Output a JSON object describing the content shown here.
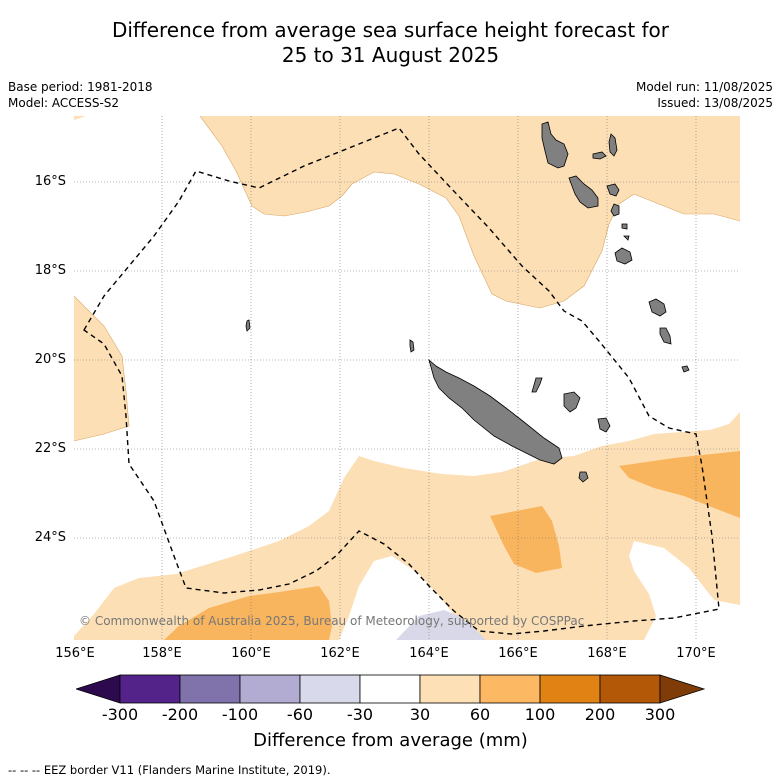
{
  "header": {
    "title_line1": "Difference from average sea surface height forecast for",
    "title_line2": "25 to 31 August 2025",
    "base_period": "Base period: 1981-2018",
    "model": "Model: ACCESS-S2",
    "model_run": "Model run: 11/08/2025",
    "issued": "Issued: 13/08/2025"
  },
  "map": {
    "lat_labels": [
      "16°S",
      "18°S",
      "20°S",
      "22°S",
      "24°S"
    ],
    "lon_labels": [
      "156°E",
      "158°E",
      "160°E",
      "162°E",
      "164°E",
      "166°E",
      "168°E",
      "170°E"
    ],
    "copyright": "© Commonwealth of Australia 2025, Bureau of Meteorology, supported by COSPPac",
    "colors": {
      "land": "#808080",
      "positive_30_60": "#fddfb5",
      "positive_60_100": "#f9b55e",
      "negative_30_60": "#d8d8e8"
    }
  },
  "colorbar": {
    "labels": [
      "-300",
      "-200",
      "-100",
      "-60",
      "-30",
      "30",
      "60",
      "100",
      "200",
      "300"
    ],
    "colors": [
      "#2d0a4e",
      "#54238a",
      "#8073ac",
      "#b2abd2",
      "#d8daeb",
      "#ffffff",
      "#fee0b6",
      "#fdb863",
      "#e08214",
      "#b35806",
      "#7f3b08"
    ],
    "title": "Difference from average (mm)"
  },
  "footer": {
    "legend_text": "-- -- -- EEZ border V11 (Flanders Marine Institute, 2019)."
  }
}
